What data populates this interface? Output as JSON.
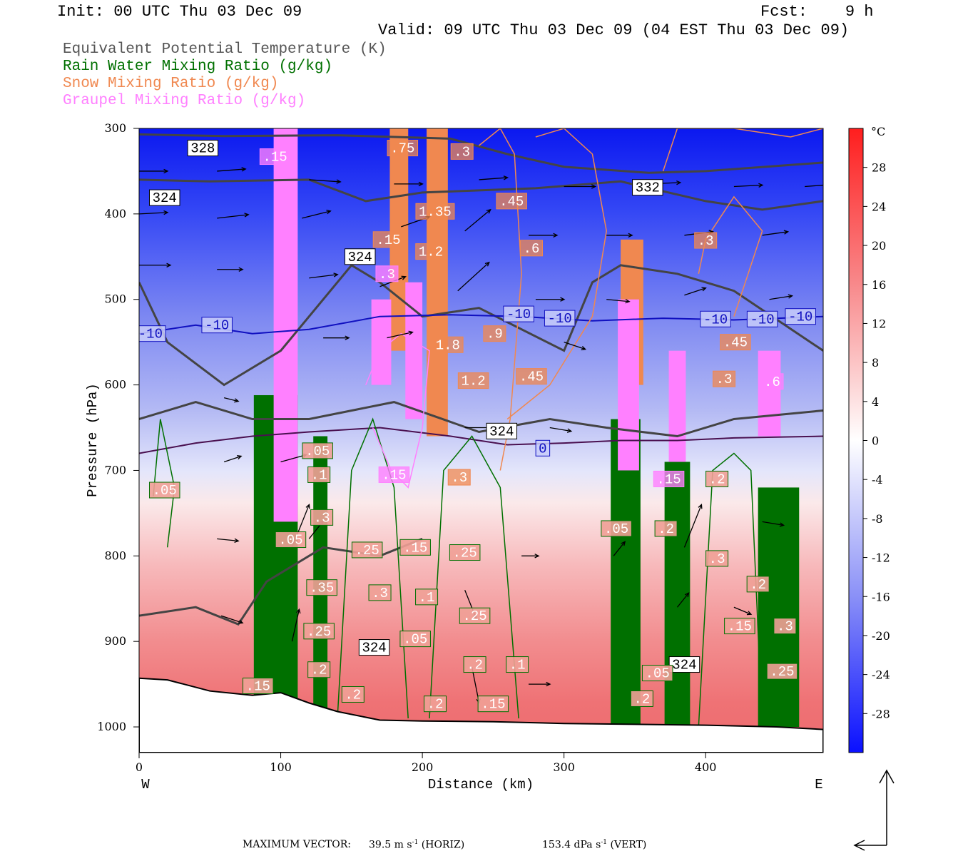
{
  "header": {
    "init": "Init: 00 UTC Thu 03 Dec 09",
    "fcst": "Fcst:    9 h",
    "valid": "Valid: 09 UTC Thu 03 Dec 09 (04 EST Thu 03 Dec 09)"
  },
  "legend": {
    "items": [
      {
        "label": "Equivalent Potential Temperature (K)",
        "color": "#555555"
      },
      {
        "label": "Rain Water Mixing Ratio (g/kg)",
        "color": "#007000"
      },
      {
        "label": "Snow Mixing Ratio (g/kg)",
        "color": "#f08850"
      },
      {
        "label": "Graupel Mixing Ratio (g/kg)",
        "color": "#ff80ff"
      }
    ]
  },
  "chart_data": {
    "type": "heatmap",
    "xlabel": "Distance (km)",
    "ylabel": "Pressure (hPa)",
    "xlim": [
      0,
      483
    ],
    "ylim": [
      1030,
      300
    ],
    "x_ticks": [
      0,
      100,
      200,
      300,
      400
    ],
    "y_ticks": [
      300,
      400,
      500,
      600,
      700,
      800,
      900,
      1000
    ],
    "x_end_labels": {
      "left": "W",
      "right": "E"
    },
    "colorbar": {
      "unit": "°C",
      "range": [
        -32,
        32
      ],
      "tick_values": [
        28,
        24,
        20,
        16,
        12,
        8,
        4,
        0,
        -4,
        -8,
        -12,
        -16,
        -20,
        -24,
        -28
      ],
      "cold_color": "#0000ff",
      "neutral_color": "#ffffff",
      "warm_color": "#ff2020"
    },
    "theta_e_labels": [
      {
        "text": "328",
        "x": 45,
        "p": 323
      },
      {
        "text": "324",
        "x": 18,
        "p": 381
      },
      {
        "text": "324",
        "x": 156,
        "p": 450
      },
      {
        "text": "332",
        "x": 359,
        "p": 369
      },
      {
        "text": "324",
        "x": 256,
        "p": 654
      },
      {
        "text": "324",
        "x": 166,
        "p": 907
      },
      {
        "text": "324",
        "x": 385,
        "p": 927
      }
    ],
    "isotherm_labels": [
      {
        "text": "-10",
        "x": 8,
        "p": 540
      },
      {
        "text": "-10",
        "x": 55,
        "p": 530
      },
      {
        "text": "-10",
        "x": 268,
        "p": 517
      },
      {
        "text": "-10",
        "x": 297,
        "p": 522
      },
      {
        "text": "-10",
        "x": 407,
        "p": 523
      },
      {
        "text": "-10",
        "x": 440,
        "p": 523
      },
      {
        "text": "-10",
        "x": 467,
        "p": 520
      },
      {
        "text": "0",
        "x": 285,
        "p": 674
      }
    ],
    "snow_labels": [
      {
        "text": ".75",
        "x": 186,
        "p": 323
      },
      {
        "text": ".3",
        "x": 228,
        "p": 327
      },
      {
        "text": ".45",
        "x": 263,
        "p": 385
      },
      {
        "text": "1.35",
        "x": 209,
        "p": 397
      },
      {
        "text": "1.2",
        "x": 206,
        "p": 444
      },
      {
        "text": ".15",
        "x": 176,
        "p": 430
      },
      {
        "text": ".6",
        "x": 277,
        "p": 440
      },
      {
        "text": ".3",
        "x": 400,
        "p": 431
      },
      {
        "text": "1.8",
        "x": 218,
        "p": 553
      },
      {
        "text": "1.2",
        "x": 236,
        "p": 595
      },
      {
        "text": ".45",
        "x": 277,
        "p": 590
      },
      {
        "text": ".45",
        "x": 421,
        "p": 550
      },
      {
        "text": ".3",
        "x": 413,
        "p": 593
      },
      {
        "text": ".9",
        "x": 251,
        "p": 540
      },
      {
        "text": ".3",
        "x": 226,
        "p": 708
      }
    ],
    "graupel_labels": [
      {
        "text": ".15",
        "x": 96,
        "p": 333
      },
      {
        "text": ".3",
        "x": 175,
        "p": 470
      },
      {
        "text": ".6",
        "x": 447,
        "p": 596
      },
      {
        "text": ".15",
        "x": 180,
        "p": 705
      },
      {
        "text": ".15",
        "x": 374,
        "p": 710
      }
    ],
    "rain_labels": [
      {
        "text": ".05",
        "x": 18,
        "p": 723
      },
      {
        "text": ".05",
        "x": 126,
        "p": 677
      },
      {
        "text": ".1",
        "x": 127,
        "p": 705
      },
      {
        "text": ".3",
        "x": 129,
        "p": 755
      },
      {
        "text": ".05",
        "x": 107,
        "p": 781
      },
      {
        "text": ".25",
        "x": 161,
        "p": 793
      },
      {
        "text": ".15",
        "x": 195,
        "p": 790
      },
      {
        "text": ".25",
        "x": 230,
        "p": 796
      },
      {
        "text": ".35",
        "x": 129,
        "p": 837
      },
      {
        "text": ".3",
        "x": 170,
        "p": 843
      },
      {
        "text": ".1",
        "x": 203,
        "p": 848
      },
      {
        "text": ".25",
        "x": 237,
        "p": 870
      },
      {
        "text": ".25",
        "x": 127,
        "p": 888
      },
      {
        "text": ".05",
        "x": 195,
        "p": 897
      },
      {
        "text": ".2",
        "x": 127,
        "p": 933
      },
      {
        "text": ".2",
        "x": 237,
        "p": 927
      },
      {
        "text": ".1",
        "x": 267,
        "p": 927
      },
      {
        "text": ".15",
        "x": 84,
        "p": 952
      },
      {
        "text": ".2",
        "x": 151,
        "p": 962
      },
      {
        "text": ".2",
        "x": 209,
        "p": 973
      },
      {
        "text": ".15",
        "x": 250,
        "p": 973
      },
      {
        "text": ".05",
        "x": 337,
        "p": 768
      },
      {
        "text": ".2",
        "x": 372,
        "p": 768
      },
      {
        "text": ".2",
        "x": 408,
        "p": 710
      },
      {
        "text": ".3",
        "x": 408,
        "p": 803
      },
      {
        "text": ".2",
        "x": 437,
        "p": 833
      },
      {
        "text": ".15",
        "x": 424,
        "p": 882
      },
      {
        "text": ".3",
        "x": 456,
        "p": 882
      },
      {
        "text": ".25",
        "x": 454,
        "p": 935
      },
      {
        "text": ".05",
        "x": 366,
        "p": 937
      },
      {
        "text": ".2",
        "x": 355,
        "p": 967
      }
    ]
  },
  "footer": {
    "max_vector_label": "MAXIMUM VECTOR:",
    "horiz": "39.5 m s",
    "horiz_exp": "-1",
    "horiz_unit": "(HORIZ)",
    "vert": "153.4 dPa s",
    "vert_exp": "-1",
    "vert_unit": "(VERT)"
  }
}
